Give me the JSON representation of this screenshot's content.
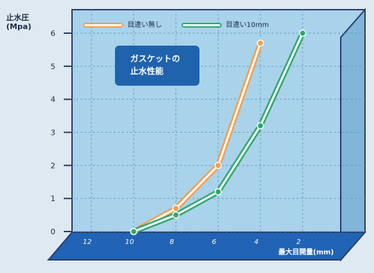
{
  "chart_data": {
    "type": "line",
    "ylabel": [
      "止水圧",
      "(Mpa)"
    ],
    "xlabel": "最大目開量(mm)",
    "note": [
      "ガスケットの",
      "止水性能"
    ],
    "x_categories": [
      "12",
      "10",
      "8",
      "6",
      "4",
      "2"
    ],
    "ylim": [
      0,
      6
    ],
    "yticks": [
      "0",
      "1",
      "2",
      "3",
      "4",
      "5",
      "6"
    ],
    "grid": true,
    "legend_position": "top",
    "series": [
      {
        "name": "目違い無し",
        "color": "#f0a050",
        "points": [
          {
            "x": "10",
            "y": 0.0
          },
          {
            "x": "8",
            "y": 0.7
          },
          {
            "x": "6",
            "y": 2.0
          },
          {
            "x": "4",
            "y": 5.7
          }
        ]
      },
      {
        "name": "目違い10mm",
        "color": "#2fa86e",
        "points": [
          {
            "x": "10",
            "y": 0.0
          },
          {
            "x": "8",
            "y": 0.5
          },
          {
            "x": "6",
            "y": 1.2
          },
          {
            "x": "4",
            "y": 3.2
          },
          {
            "x": "2",
            "y": 6.0
          }
        ]
      }
    ]
  }
}
